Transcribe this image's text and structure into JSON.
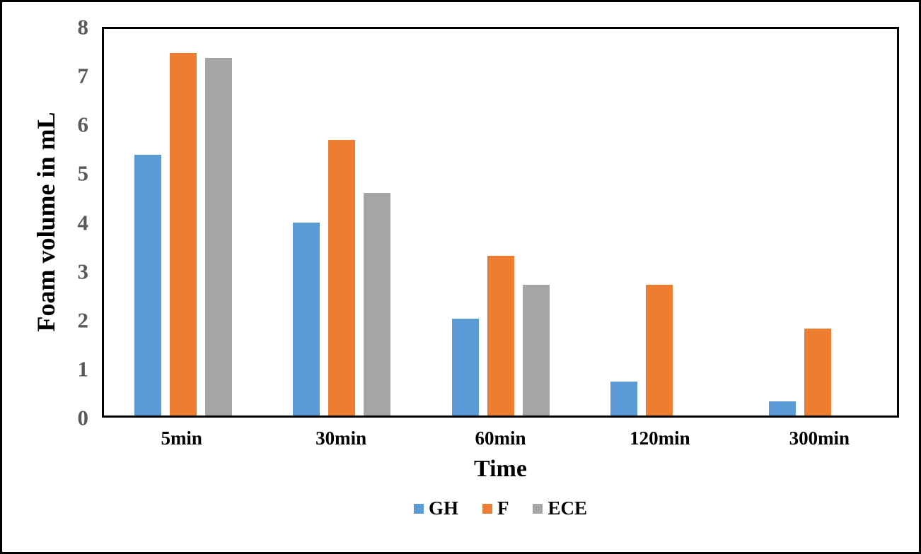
{
  "chart_data": {
    "type": "bar",
    "title": "",
    "xlabel": "Time",
    "ylabel": "Foam volume in mL",
    "categories": [
      "5min",
      "30min",
      "60min",
      "120min",
      "300min"
    ],
    "series": [
      {
        "name": "GH",
        "color": "#5B9BD5",
        "values": [
          5.4,
          4.0,
          2.0,
          0.7,
          0.3
        ]
      },
      {
        "name": "F",
        "color": "#ED7D31",
        "values": [
          7.5,
          5.7,
          3.3,
          2.7,
          1.8
        ]
      },
      {
        "name": "ECE",
        "color": "#A5A5A5",
        "values": [
          7.4,
          4.6,
          2.7,
          0,
          0
        ]
      }
    ],
    "ylim": [
      0,
      8
    ],
    "yticks": [
      0,
      1,
      2,
      3,
      4,
      5,
      6,
      7,
      8
    ],
    "grid": false,
    "legend_position": "bottom"
  },
  "style": {
    "axis_color": "#000000",
    "tick_label_color": "#595959",
    "text_color": "#000000",
    "background": "#ffffff"
  }
}
